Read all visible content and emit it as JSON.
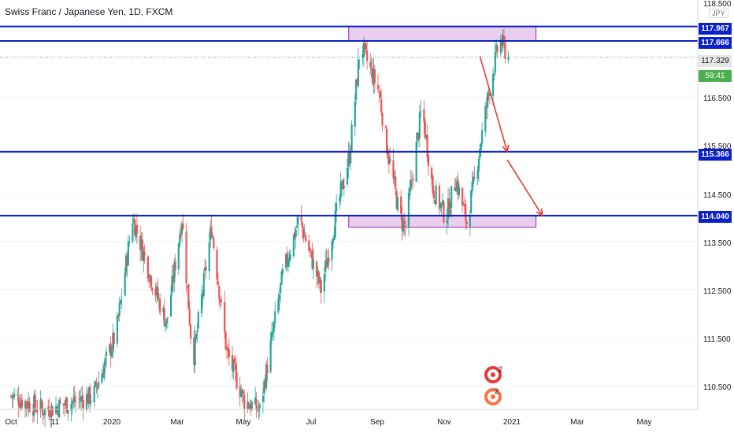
{
  "header": {
    "title": "Swiss Franc / Japanese Yen, 1D, FXCM"
  },
  "price_axis": {
    "currency_badge": "JPY",
    "ticks": [
      "118.500",
      "116.500",
      "115.500",
      "114.500",
      "113.500",
      "112.500",
      "111.500",
      "110.500"
    ],
    "level_labels": [
      "117.967",
      "117.666",
      "115.366",
      "114.040"
    ],
    "last_price_label": "117.329",
    "countdown_label": "59:41"
  },
  "time_axis": {
    "ticks": [
      "Oct",
      "11",
      "2020",
      "Mar",
      "May",
      "Jul",
      "Sep",
      "Nov",
      "2021",
      "Mar",
      "May"
    ]
  },
  "colors": {
    "up": "#26a69a",
    "down": "#ef5350",
    "levels": "#0a20c8",
    "zone_fill": "#e1bee7",
    "zone_border": "#9c27b0",
    "arrow": "#e53935",
    "last_price": "#4caf50"
  },
  "chart_data": {
    "type": "candlestick",
    "symbol": "CHFJPY",
    "interval": "1D",
    "price_range": [
      110.0,
      118.5
    ],
    "horizontal_levels": [
      117.967,
      117.666,
      115.366,
      114.04
    ],
    "zones": [
      {
        "from_date": "2020-08-10",
        "to_date": "2021-01-15",
        "low": 117.666,
        "high": 117.967
      },
      {
        "from_date": "2020-08-10",
        "to_date": "2021-01-15",
        "low": 113.8,
        "high": 114.04
      }
    ],
    "last_price": 117.329,
    "projection_arrows": [
      {
        "from": [
          "2020-12-02",
          117.35
        ],
        "to": [
          "2020-12-27",
          115.366
        ]
      },
      {
        "from": [
          "2020-12-27",
          115.2
        ],
        "to": [
          "2021-01-28",
          114.04
        ]
      }
    ],
    "waypoints": [
      [
        "2019-10-01",
        110.3
      ],
      [
        "2019-11-01",
        110.0
      ],
      [
        "2019-12-15",
        110.3
      ],
      [
        "2020-01-05",
        111.6
      ],
      [
        "2020-01-20",
        114.0
      ],
      [
        "2020-02-05",
        112.8
      ],
      [
        "2020-02-20",
        111.8
      ],
      [
        "2020-03-05",
        114.0
      ],
      [
        "2020-03-15",
        111.0
      ],
      [
        "2020-04-01",
        113.8
      ],
      [
        "2020-04-15",
        111.2
      ],
      [
        "2020-05-01",
        110.2
      ],
      [
        "2020-05-15",
        110.0
      ],
      [
        "2020-06-05",
        112.8
      ],
      [
        "2020-06-20",
        114.0
      ],
      [
        "2020-07-10",
        112.5
      ],
      [
        "2020-07-25",
        114.2
      ],
      [
        "2020-08-05",
        115.3
      ],
      [
        "2020-08-15",
        117.6
      ],
      [
        "2020-09-01",
        116.6
      ],
      [
        "2020-09-08",
        115.5
      ],
      [
        "2020-09-20",
        114.0
      ],
      [
        "2020-09-25",
        113.8
      ],
      [
        "2020-10-10",
        116.3
      ],
      [
        "2020-10-20",
        114.6
      ],
      [
        "2020-11-01",
        114.0
      ],
      [
        "2020-11-10",
        114.8
      ],
      [
        "2020-11-20",
        113.9
      ],
      [
        "2020-11-28",
        114.9
      ],
      [
        "2020-12-10",
        116.6
      ],
      [
        "2020-12-20",
        117.7
      ],
      [
        "2020-12-28",
        117.33
      ]
    ]
  }
}
